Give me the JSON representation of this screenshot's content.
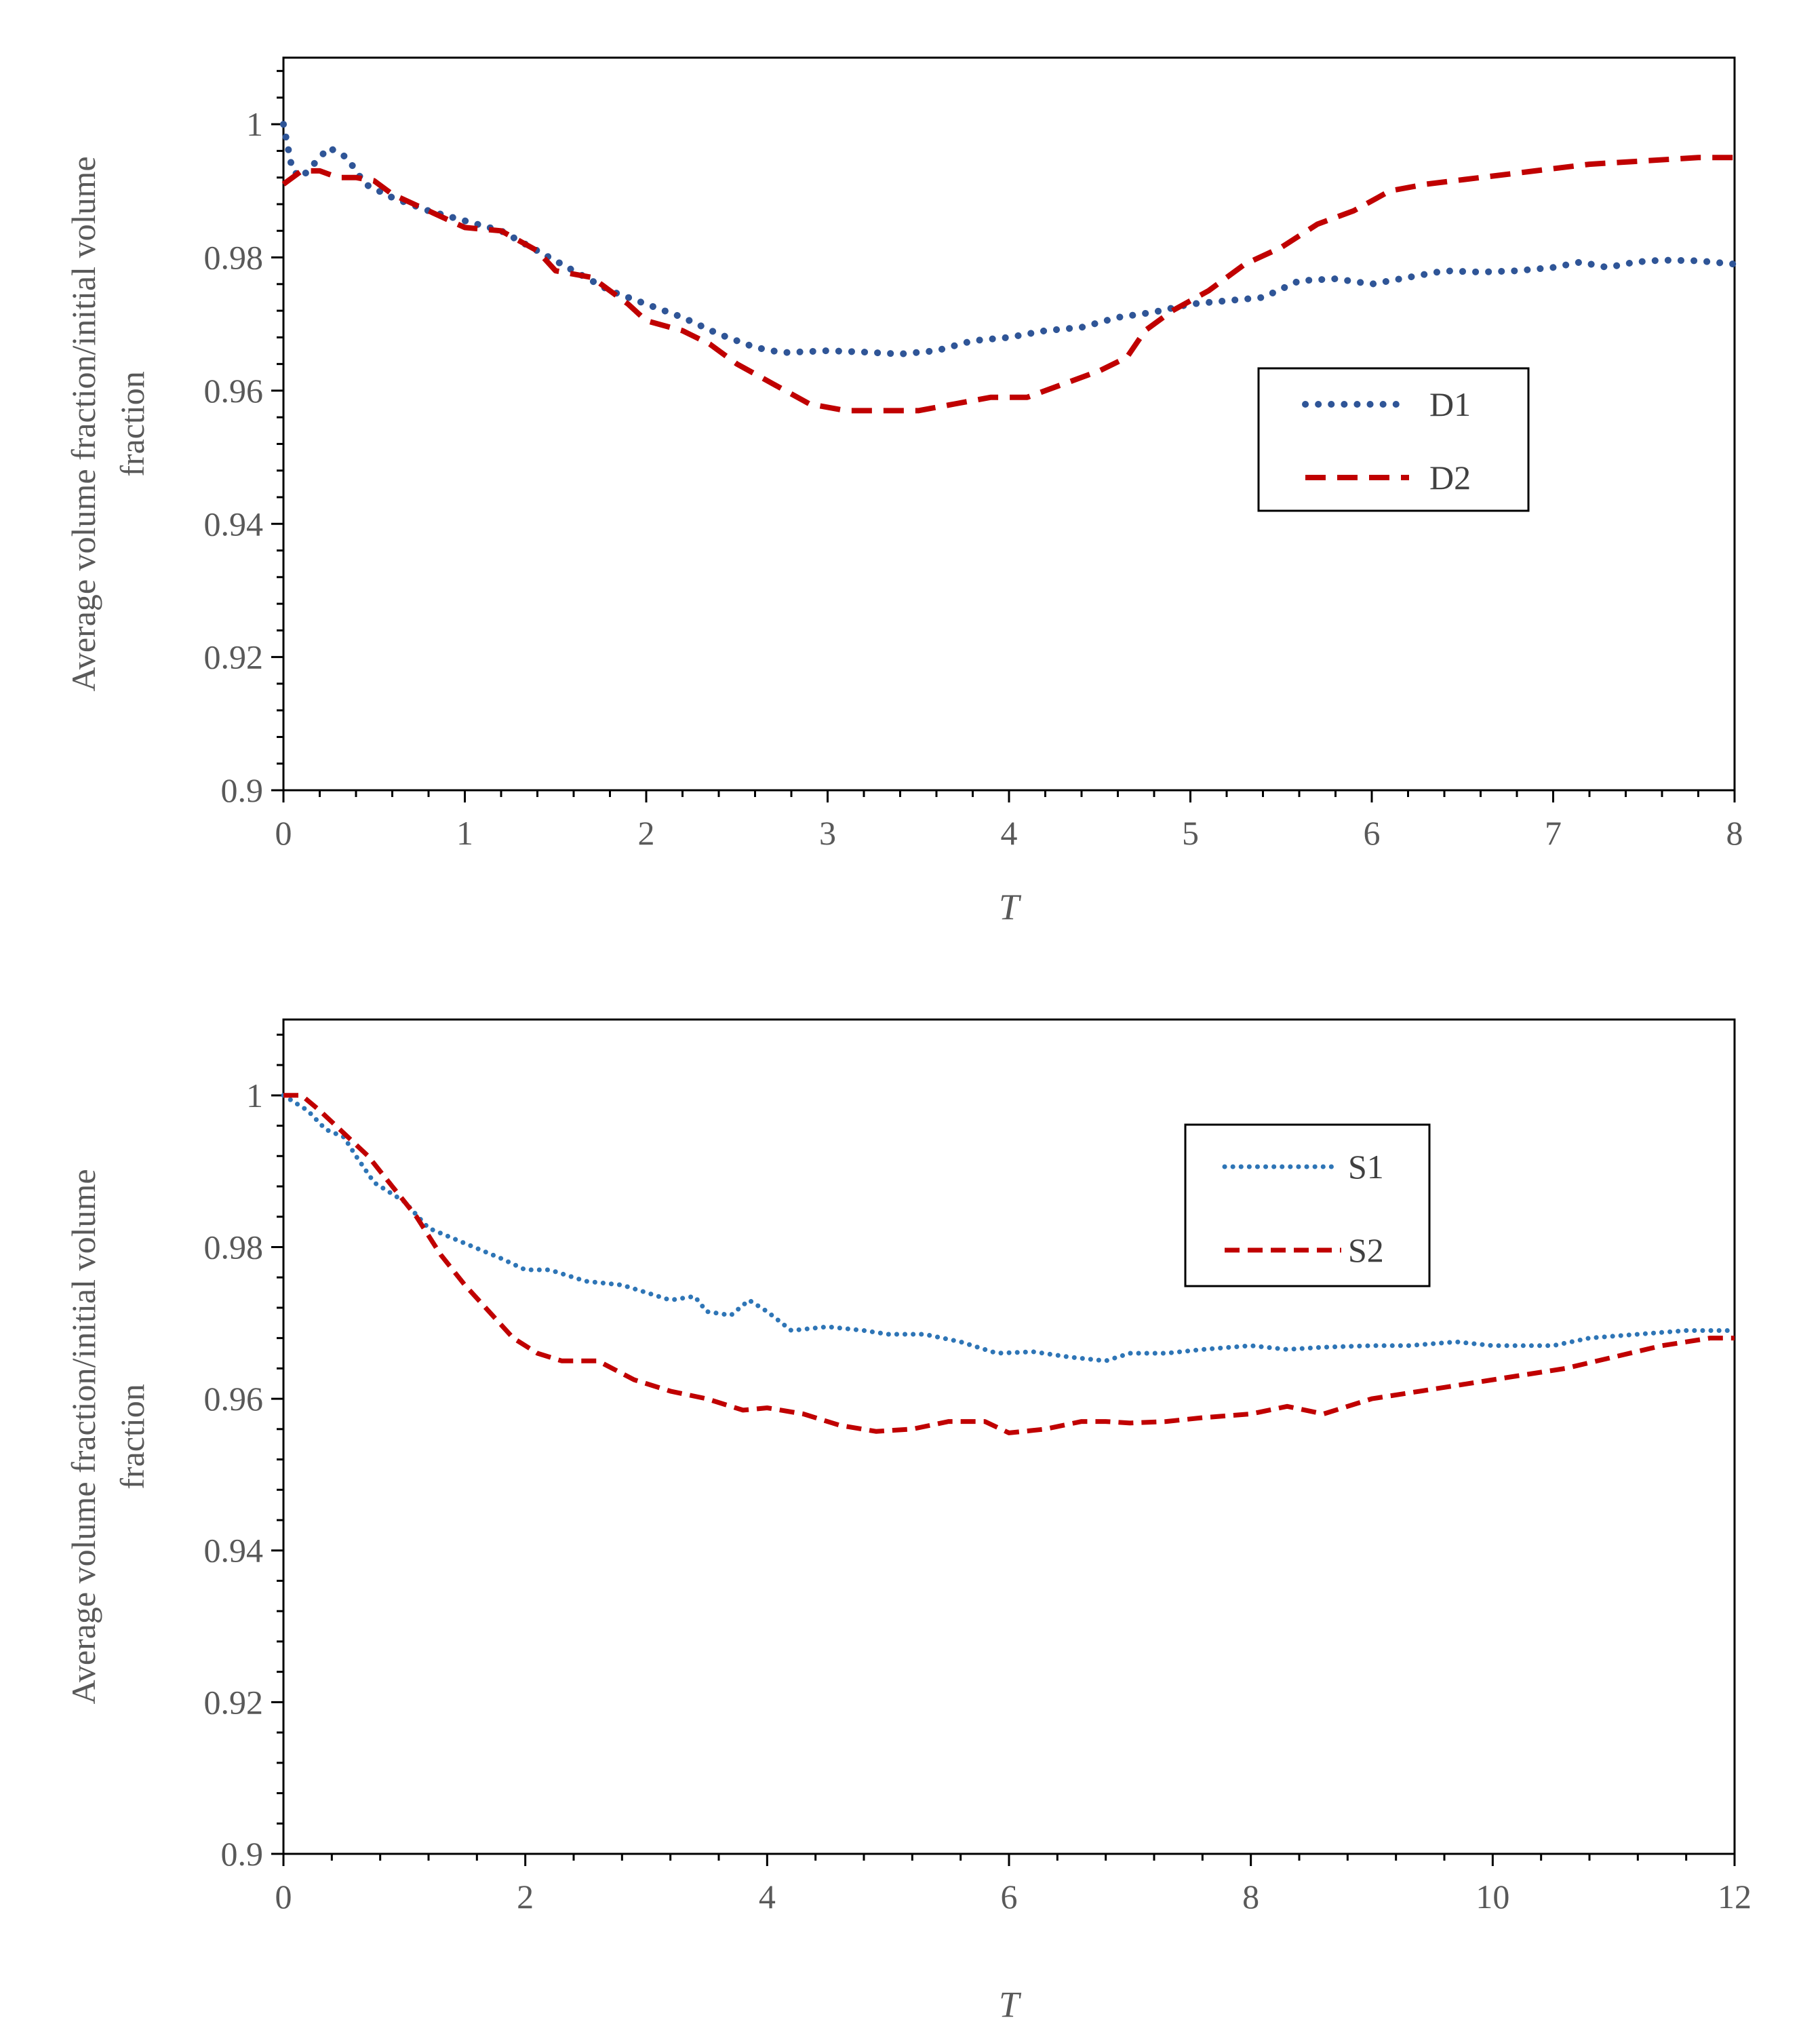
{
  "chart_data": [
    {
      "type": "line",
      "id": "top",
      "xlabel": "T",
      "ylabel_lines": [
        "Average volume fraction/initial volume",
        "fraction"
      ],
      "xlim": [
        0,
        8
      ],
      "ylim": [
        0.9,
        1.01
      ],
      "xticks": [
        0,
        1,
        2,
        3,
        4,
        5,
        6,
        7,
        8
      ],
      "xtick_labels": [
        "0",
        "1",
        "2",
        "3",
        "4",
        "5",
        "6",
        "7",
        "8"
      ],
      "yticks": [
        0.9,
        0.92,
        0.94,
        0.96,
        0.98,
        1.0
      ],
      "ytick_labels": [
        "0.9",
        "0.92",
        "0.94",
        "0.96",
        "0.98",
        "1"
      ],
      "x_minor_step": 0.2,
      "y_minor_step": 0.004,
      "grid": false,
      "legend_position": "center-right",
      "series": [
        {
          "name": "D1",
          "style": "dotted",
          "color": "#2F5597",
          "points": [
            [
              0,
              1.0
            ],
            [
              0.05,
              0.993
            ],
            [
              0.1,
              0.992
            ],
            [
              0.2,
              0.995
            ],
            [
              0.25,
              0.9965
            ],
            [
              0.35,
              0.995
            ],
            [
              0.45,
              0.991
            ],
            [
              0.6,
              0.989
            ],
            [
              0.8,
              0.987
            ],
            [
              1.0,
              0.9855
            ],
            [
              1.2,
              0.984
            ],
            [
              1.4,
              0.981
            ],
            [
              1.6,
              0.978
            ],
            [
              1.8,
              0.975
            ],
            [
              2.0,
              0.973
            ],
            [
              2.2,
              0.971
            ],
            [
              2.4,
              0.9685
            ],
            [
              2.6,
              0.9665
            ],
            [
              2.75,
              0.9657
            ],
            [
              3.0,
              0.966
            ],
            [
              3.2,
              0.9658
            ],
            [
              3.4,
              0.9655
            ],
            [
              3.6,
              0.966
            ],
            [
              3.8,
              0.9675
            ],
            [
              4.0,
              0.968
            ],
            [
              4.2,
              0.969
            ],
            [
              4.4,
              0.9695
            ],
            [
              4.6,
              0.971
            ],
            [
              4.8,
              0.9718
            ],
            [
              5.0,
              0.973
            ],
            [
              5.2,
              0.9735
            ],
            [
              5.4,
              0.974
            ],
            [
              5.6,
              0.9765
            ],
            [
              5.8,
              0.9768
            ],
            [
              6.0,
              0.976
            ],
            [
              6.2,
              0.977
            ],
            [
              6.4,
              0.978
            ],
            [
              6.6,
              0.9778
            ],
            [
              6.8,
              0.978
            ],
            [
              7.0,
              0.9785
            ],
            [
              7.15,
              0.9793
            ],
            [
              7.3,
              0.9785
            ],
            [
              7.45,
              0.9793
            ],
            [
              7.6,
              0.9796
            ],
            [
              7.8,
              0.9795
            ],
            [
              8.0,
              0.979
            ]
          ]
        },
        {
          "name": "D2",
          "style": "dashed",
          "color": "#C00000",
          "points": [
            [
              0,
              0.991
            ],
            [
              0.1,
              0.993
            ],
            [
              0.2,
              0.993
            ],
            [
              0.3,
              0.992
            ],
            [
              0.4,
              0.992
            ],
            [
              0.5,
              0.9915
            ],
            [
              0.6,
              0.9895
            ],
            [
              0.8,
              0.987
            ],
            [
              1.0,
              0.9845
            ],
            [
              1.2,
              0.984
            ],
            [
              1.4,
              0.981
            ],
            [
              1.5,
              0.978
            ],
            [
              1.7,
              0.977
            ],
            [
              1.9,
              0.973
            ],
            [
              2.0,
              0.9705
            ],
            [
              2.2,
              0.969
            ],
            [
              2.35,
              0.967
            ],
            [
              2.5,
              0.964
            ],
            [
              2.7,
              0.961
            ],
            [
              2.9,
              0.958
            ],
            [
              3.1,
              0.957
            ],
            [
              3.3,
              0.957
            ],
            [
              3.5,
              0.957
            ],
            [
              3.7,
              0.958
            ],
            [
              3.9,
              0.959
            ],
            [
              4.1,
              0.959
            ],
            [
              4.3,
              0.961
            ],
            [
              4.5,
              0.963
            ],
            [
              4.65,
              0.965
            ],
            [
              4.75,
              0.969
            ],
            [
              4.9,
              0.972
            ],
            [
              5.1,
              0.975
            ],
            [
              5.3,
              0.979
            ],
            [
              5.5,
              0.9815
            ],
            [
              5.7,
              0.985
            ],
            [
              5.9,
              0.987
            ],
            [
              6.1,
              0.99
            ],
            [
              6.3,
              0.991
            ],
            [
              6.6,
              0.992
            ],
            [
              6.9,
              0.993
            ],
            [
              7.2,
              0.994
            ],
            [
              7.5,
              0.9945
            ],
            [
              7.8,
              0.995
            ],
            [
              8.0,
              0.995
            ]
          ]
        }
      ]
    },
    {
      "type": "line",
      "id": "bottom",
      "xlabel": "T",
      "ylabel_lines": [
        "Average volume fraction/initial volume",
        "fraction"
      ],
      "xlim": [
        0,
        12
      ],
      "ylim": [
        0.9,
        1.01
      ],
      "xticks": [
        0,
        2,
        4,
        6,
        8,
        10,
        12
      ],
      "xtick_labels": [
        "0",
        "2",
        "4",
        "6",
        "8",
        "10",
        "12"
      ],
      "yticks": [
        0.9,
        0.92,
        0.94,
        0.96,
        0.98,
        1.0
      ],
      "ytick_labels": [
        "0.9",
        "0.92",
        "0.94",
        "0.96",
        "0.98",
        "1"
      ],
      "x_minor_step": 0.4,
      "y_minor_step": 0.004,
      "grid": false,
      "legend_position": "top-center-right",
      "series": [
        {
          "name": "S1",
          "style": "dotted",
          "color": "#2E75B6",
          "points": [
            [
              0,
              1.0
            ],
            [
              0.2,
              0.998
            ],
            [
              0.35,
              0.9955
            ],
            [
              0.5,
              0.9945
            ],
            [
              0.6,
              0.992
            ],
            [
              0.75,
              0.9885
            ],
            [
              0.9,
              0.987
            ],
            [
              1.0,
              0.986
            ],
            [
              1.2,
              0.9825
            ],
            [
              1.5,
              0.9805
            ],
            [
              1.8,
              0.9785
            ],
            [
              2.0,
              0.977
            ],
            [
              2.2,
              0.977
            ],
            [
              2.5,
              0.9755
            ],
            [
              2.8,
              0.975
            ],
            [
              3.0,
              0.974
            ],
            [
              3.2,
              0.973
            ],
            [
              3.4,
              0.9735
            ],
            [
              3.5,
              0.9715
            ],
            [
              3.7,
              0.971
            ],
            [
              3.85,
              0.973
            ],
            [
              4.0,
              0.9715
            ],
            [
              4.2,
              0.969
            ],
            [
              4.5,
              0.9695
            ],
            [
              4.8,
              0.969
            ],
            [
              5.0,
              0.9685
            ],
            [
              5.3,
              0.9685
            ],
            [
              5.6,
              0.9675
            ],
            [
              5.9,
              0.966
            ],
            [
              6.2,
              0.9662
            ],
            [
              6.5,
              0.9655
            ],
            [
              6.8,
              0.965
            ],
            [
              7.0,
              0.966
            ],
            [
              7.3,
              0.966
            ],
            [
              7.6,
              0.9665
            ],
            [
              8.0,
              0.967
            ],
            [
              8.3,
              0.9665
            ],
            [
              8.6,
              0.9668
            ],
            [
              9.0,
              0.967
            ],
            [
              9.3,
              0.967
            ],
            [
              9.7,
              0.9675
            ],
            [
              10.0,
              0.967
            ],
            [
              10.5,
              0.967
            ],
            [
              10.8,
              0.968
            ],
            [
              11.2,
              0.9685
            ],
            [
              11.6,
              0.969
            ],
            [
              12.0,
              0.969
            ]
          ]
        },
        {
          "name": "S2",
          "style": "dashed",
          "color": "#C00000",
          "points": [
            [
              0,
              1.0
            ],
            [
              0.15,
              1.0
            ],
            [
              0.3,
              0.998
            ],
            [
              0.5,
              0.995
            ],
            [
              0.7,
              0.992
            ],
            [
              0.9,
              0.988
            ],
            [
              1.1,
              0.984
            ],
            [
              1.3,
              0.979
            ],
            [
              1.5,
              0.975
            ],
            [
              1.7,
              0.9715
            ],
            [
              1.9,
              0.968
            ],
            [
              2.1,
              0.966
            ],
            [
              2.3,
              0.965
            ],
            [
              2.6,
              0.965
            ],
            [
              2.9,
              0.9625
            ],
            [
              3.2,
              0.961
            ],
            [
              3.5,
              0.96
            ],
            [
              3.8,
              0.9585
            ],
            [
              4.0,
              0.9588
            ],
            [
              4.3,
              0.958
            ],
            [
              4.6,
              0.9565
            ],
            [
              4.9,
              0.9557
            ],
            [
              5.2,
              0.956
            ],
            [
              5.5,
              0.957
            ],
            [
              5.8,
              0.957
            ],
            [
              6.0,
              0.9555
            ],
            [
              6.3,
              0.956
            ],
            [
              6.6,
              0.957
            ],
            [
              6.8,
              0.957
            ],
            [
              7.0,
              0.9568
            ],
            [
              7.3,
              0.957
            ],
            [
              7.6,
              0.9575
            ],
            [
              8.0,
              0.958
            ],
            [
              8.3,
              0.959
            ],
            [
              8.6,
              0.958
            ],
            [
              9.0,
              0.96
            ],
            [
              9.4,
              0.961
            ],
            [
              9.8,
              0.962
            ],
            [
              10.2,
              0.963
            ],
            [
              10.6,
              0.964
            ],
            [
              11.0,
              0.9655
            ],
            [
              11.4,
              0.967
            ],
            [
              11.8,
              0.968
            ],
            [
              12.0,
              0.968
            ]
          ]
        }
      ]
    }
  ]
}
